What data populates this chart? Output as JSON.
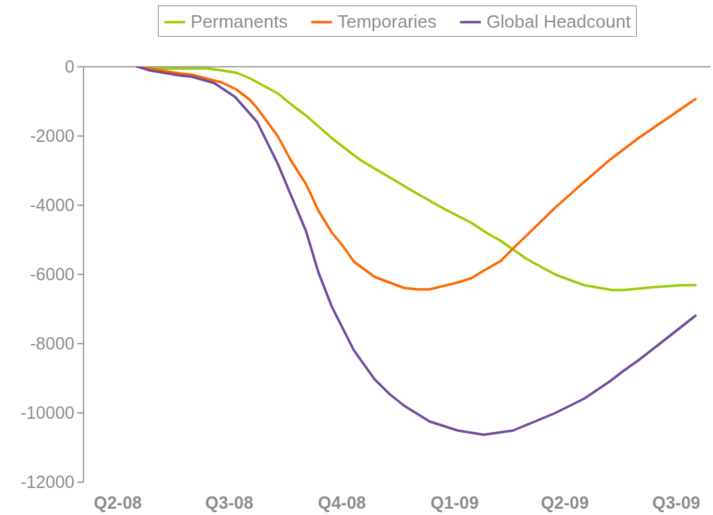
{
  "chart_data": {
    "type": "line",
    "xlim": [
      "2008-03-04",
      "2009-07-29"
    ],
    "xticks": [
      {
        "value": "2008-04-01",
        "label": "Q2-08"
      },
      {
        "value": "2008-07-01",
        "label": "Q3-08"
      },
      {
        "value": "2008-10-01",
        "label": "Q4-08"
      },
      {
        "value": "2009-01-01",
        "label": "Q1-09"
      },
      {
        "value": "2009-04-01",
        "label": "Q2-09"
      },
      {
        "value": "2009-07-01",
        "label": "Q3-09"
      }
    ],
    "ylim": [
      -12000,
      0
    ],
    "yticks": [
      -12000,
      -10000,
      -8000,
      -6000,
      -4000,
      -2000,
      0
    ],
    "legend": "top right",
    "series": [
      {
        "name": "Permanents",
        "color": "#99cc00",
        "x": [
          "2008-04-17",
          "2008-04-28",
          "2008-06-14",
          "2008-06-26",
          "2008-07-07",
          "2008-07-18",
          "2008-08-10",
          "2008-08-21",
          "2008-09-02",
          "2008-09-24",
          "2008-10-17",
          "2008-11-09",
          "2008-12-01",
          "2008-12-23",
          "2009-01-15",
          "2009-01-27",
          "2009-02-08",
          "2009-03-01",
          "2009-03-25",
          "2009-04-17",
          "2009-05-10",
          "2009-05-19",
          "2009-06-12",
          "2009-07-06",
          "2009-07-17"
        ],
        "values": [
          0,
          -60,
          -60,
          -120,
          -180,
          -340,
          -780,
          -1100,
          -1420,
          -2100,
          -2720,
          -3200,
          -3660,
          -4100,
          -4520,
          -4800,
          -5040,
          -5560,
          -6020,
          -6320,
          -6460,
          -6460,
          -6380,
          -6320,
          -6320
        ]
      },
      {
        "name": "Temporaries",
        "color": "#ff6600",
        "x": [
          "2008-04-17",
          "2008-05-22",
          "2008-06-01",
          "2008-06-25",
          "2008-07-07",
          "2008-07-18",
          "2008-07-24",
          "2008-08-10",
          "2008-08-21",
          "2008-09-02",
          "2008-09-12",
          "2008-09-23",
          "2008-10-01",
          "2008-10-06",
          "2008-10-11",
          "2008-10-28",
          "2008-11-21",
          "2008-12-02",
          "2008-12-12",
          "2009-01-04",
          "2009-01-15",
          "2009-01-25",
          "2009-02-08",
          "2009-02-18",
          "2009-03-25",
          "2009-04-17",
          "2009-05-08",
          "2009-05-31",
          "2009-07-17"
        ],
        "values": [
          0,
          -200,
          -240,
          -460,
          -660,
          -960,
          -1200,
          -2020,
          -2740,
          -3400,
          -4160,
          -4800,
          -5140,
          -5380,
          -5640,
          -6080,
          -6400,
          -6440,
          -6440,
          -6240,
          -6120,
          -5900,
          -5620,
          -5260,
          -4060,
          -3340,
          -2700,
          -2080,
          -940
        ]
      },
      {
        "name": "Global Headcount",
        "color": "#6f4a9a",
        "x": [
          "2008-04-17",
          "2008-04-28",
          "2008-05-22",
          "2008-06-01",
          "2008-06-19",
          "2008-07-06",
          "2008-07-24",
          "2008-08-10",
          "2008-09-02",
          "2008-09-12",
          "2008-09-23",
          "2008-10-05",
          "2008-10-11",
          "2008-10-28",
          "2008-11-09",
          "2008-11-21",
          "2008-12-12",
          "2009-01-04",
          "2009-01-25",
          "2009-02-18",
          "2009-03-24",
          "2009-04-17",
          "2009-05-08",
          "2009-05-19",
          "2009-05-31",
          "2009-06-24",
          "2009-07-17"
        ],
        "values": [
          0,
          -120,
          -260,
          -300,
          -480,
          -880,
          -1600,
          -2820,
          -4760,
          -5940,
          -6940,
          -7780,
          -8200,
          -9040,
          -9460,
          -9800,
          -10260,
          -10520,
          -10640,
          -10520,
          -10020,
          -9600,
          -9100,
          -8800,
          -8500,
          -7840,
          -7200
        ]
      }
    ]
  }
}
